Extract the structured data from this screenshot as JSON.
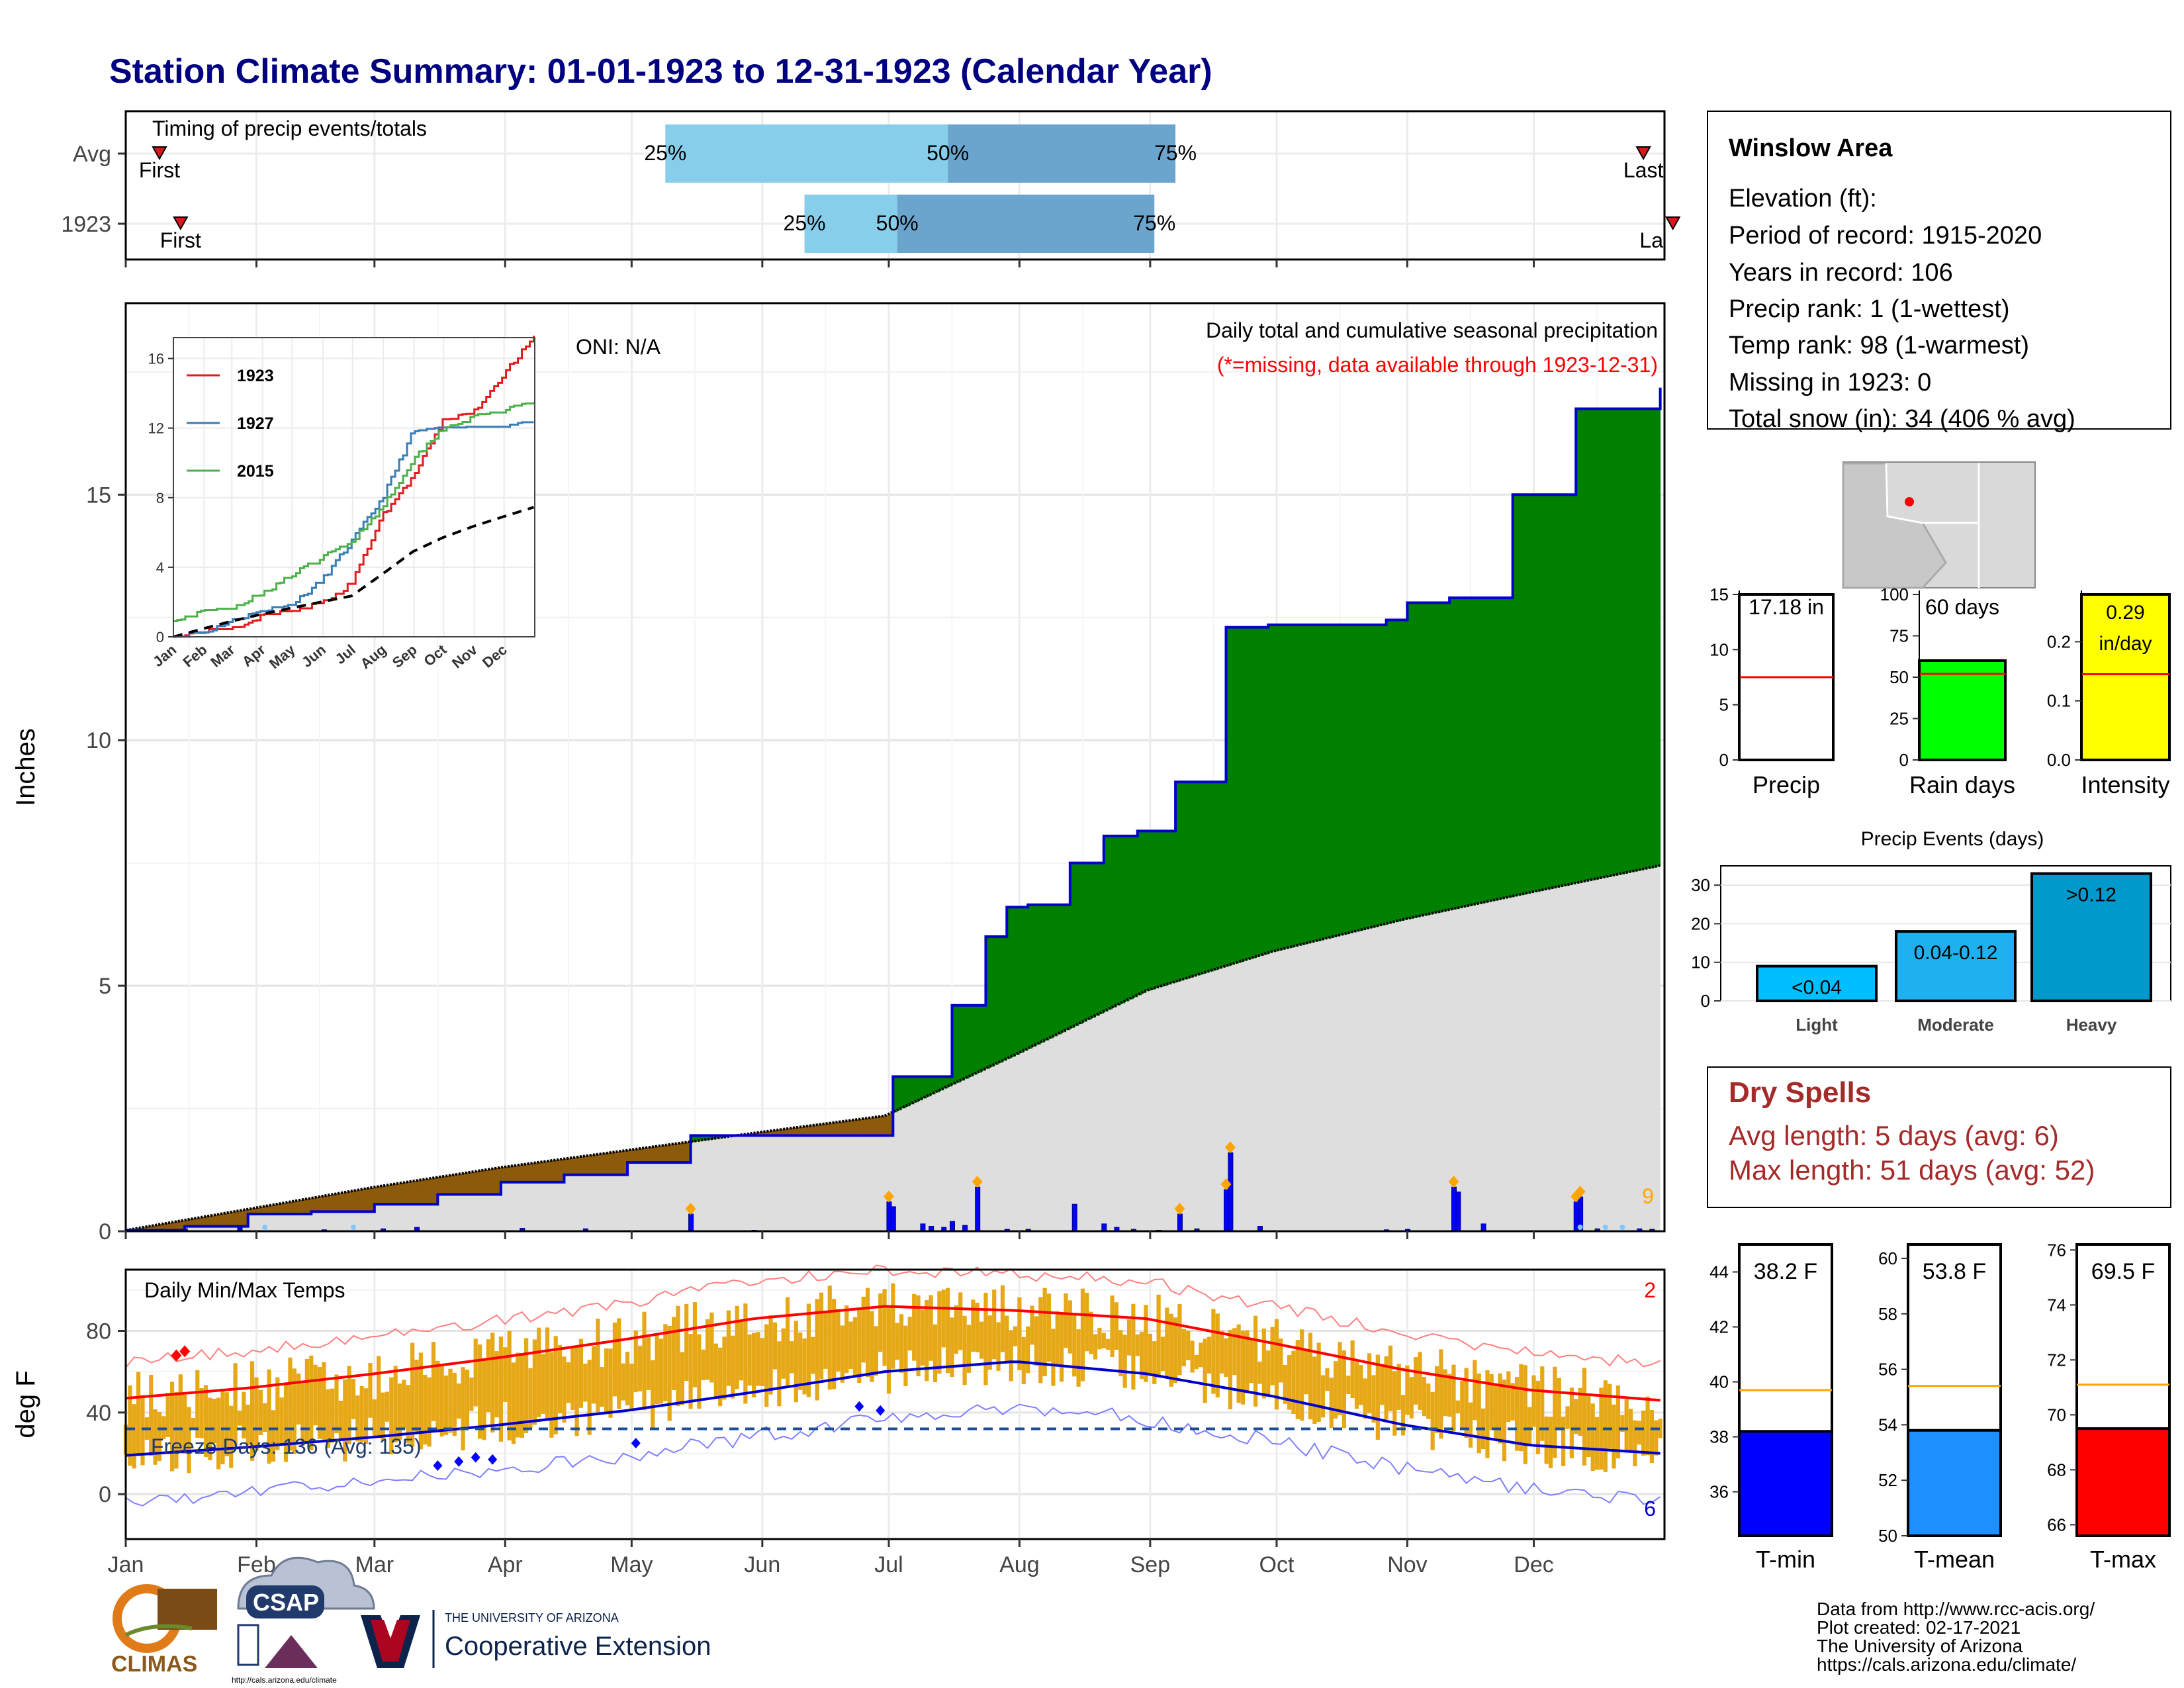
{
  "title": "Station Climate Summary: 01-01-1923 to 12-31-1923 (Calendar Year)",
  "months": [
    "Jan",
    "Feb",
    "Mar",
    "Apr",
    "May",
    "Jun",
    "Jul",
    "Aug",
    "Sep",
    "Oct",
    "Nov",
    "Dec"
  ],
  "timing": {
    "title": "Timing of precip events/totals",
    "rows": [
      "Avg",
      "1923"
    ],
    "pct_labels": [
      "25%",
      "50%",
      "75%"
    ],
    "first_label": "First",
    "last_label": "Last",
    "last_label_clipped": "La"
  },
  "main": {
    "ylabel": "Inches",
    "oni": "ONI: N/A",
    "heading": "Daily total and cumulative seasonal precipitation",
    "missing_note": "(*=missing, data available through 1923-12-31)",
    "extreme_count": "9",
    "yticks": [
      "0",
      "5",
      "10",
      "15"
    ]
  },
  "inset": {
    "legend": [
      "1923",
      "1927",
      "2015"
    ],
    "yticks": [
      "0",
      "4",
      "8",
      "12",
      "16"
    ],
    "xticks": [
      "Jan",
      "Feb",
      "Mar",
      "Apr",
      "May",
      "Jun",
      "Jul",
      "Aug",
      "Sep",
      "Oct",
      "Nov",
      "Dec"
    ]
  },
  "temps": {
    "ylabel": "deg F",
    "title": "Daily Min/Max Temps",
    "freeze": "Freeze Days: 136 (Avg: 135)",
    "hot_count": "2",
    "cold_count": "6",
    "yticks": [
      "0",
      "40",
      "80"
    ]
  },
  "info_box": {
    "station": "Winslow Area",
    "lines": [
      "Elevation (ft):",
      "Period of record: 1915-2020",
      "Years in record: 106",
      "Precip rank: 1 (1-wettest)",
      "Temp rank: 98 (1-warmest)",
      "Missing in 1923: 0",
      "Total snow (in): 34 (406 % avg)"
    ]
  },
  "mini_bars": [
    {
      "label": "Precip",
      "value_text": "17.18 in",
      "value": 17.18,
      "avg": 7.5,
      "ymax": 15,
      "yticks": [
        "0",
        "5",
        "10",
        "15"
      ],
      "color": "#ffffff"
    },
    {
      "label": "Rain days",
      "value_text": "60 days",
      "value": 60,
      "avg": 52,
      "ymax": 100,
      "yticks": [
        "0",
        "25",
        "50",
        "75",
        "100"
      ],
      "color": "#00ff00"
    },
    {
      "label": "Intensity",
      "value_text": "0.29 in/day",
      "value_line1": "0.29",
      "value_line2": "in/day",
      "value": 0.29,
      "avg": 0.145,
      "ymax": 0.28,
      "yticks": [
        "0.0",
        "0.1",
        "0.2"
      ],
      "color": "#ffff00"
    }
  ],
  "events": {
    "title": "Precip Events (days)",
    "categories": [
      "Light",
      "Moderate",
      "Heavy"
    ],
    "bin_labels": [
      "<0.04",
      "0.04-0.12",
      ">0.12"
    ],
    "values": [
      9,
      18,
      33
    ],
    "yticks": [
      "0",
      "10",
      "20",
      "30"
    ]
  },
  "dry_spells": {
    "title": "Dry Spells",
    "avg_line": "Avg length: 5 days (avg: 6)",
    "max_line": "Max length: 51 days (avg: 52)"
  },
  "temp_bars": [
    {
      "label": "T-min",
      "value_text": "38.2 F",
      "value": 38.2,
      "avg": 39.7,
      "ymin": 34.4,
      "ymax": 45.0,
      "yticks": [
        "36",
        "38",
        "40",
        "42",
        "44"
      ],
      "color": "#0000ff"
    },
    {
      "label": "T-mean",
      "value_text": "53.8 F",
      "value": 53.8,
      "avg": 55.4,
      "ymin": 50,
      "ymax": 60.5,
      "yticks": [
        "50",
        "52",
        "54",
        "56",
        "58",
        "60"
      ],
      "color": "#1e90ff"
    },
    {
      "label": "T-max",
      "value_text": "69.5 F",
      "value": 69.5,
      "avg": 71.1,
      "ymin": 65.6,
      "ymax": 76.2,
      "yticks": [
        "66",
        "68",
        "70",
        "72",
        "74",
        "76"
      ],
      "color": "#ff0000"
    }
  ],
  "footer": {
    "climas": "CLIMAS",
    "csap": "CSAP",
    "csap_url": "http://cals.arizona.edu/climate",
    "ua_small": "THE UNIVERSITY OF ARIZONA",
    "ua_big": "Cooperative Extension",
    "credits": [
      "Data from http://www.rcc-acis.org/",
      "Plot created: 02-17-2021",
      "The University of Arizona",
      "https://cals.arizona.edu/climate/"
    ]
  },
  "chart_data": [
    {
      "type": "area",
      "name": "cumulative precipitation",
      "ylabel": "Inches",
      "ylim": [
        0,
        18.5
      ],
      "x_unit": "day of year",
      "series": [
        {
          "name": "1923 cumulative",
          "x": [
            1,
            15,
            30,
            45,
            60,
            75,
            90,
            105,
            120,
            135,
            150,
            165,
            182,
            183,
            190,
            197,
            205,
            210,
            215,
            225,
            233,
            241,
            250,
            262,
            265,
            272,
            285,
            300,
            305,
            315,
            330,
            345,
            365
          ],
          "values": [
            0.02,
            0.1,
            0.35,
            0.4,
            0.55,
            0.75,
            1.0,
            1.15,
            1.4,
            1.95,
            1.95,
            1.95,
            1.95,
            3.15,
            3.15,
            4.6,
            6.0,
            6.6,
            6.65,
            7.5,
            8.05,
            8.15,
            9.15,
            12.3,
            12.3,
            12.35,
            12.35,
            12.45,
            12.8,
            12.9,
            15.0,
            16.75,
            17.18
          ]
        },
        {
          "name": "average cumulative",
          "x": [
            1,
            30,
            60,
            90,
            120,
            150,
            181,
            212,
            243,
            273,
            304,
            334,
            365
          ],
          "values": [
            0.02,
            0.45,
            0.9,
            1.3,
            1.65,
            2.0,
            2.35,
            3.6,
            4.9,
            5.7,
            6.35,
            6.9,
            7.45
          ]
        }
      ],
      "notes": [
        "Daily total and cumulative seasonal precipitation",
        "(*=missing, data available through 1923-12-31)"
      ]
    },
    {
      "type": "line",
      "name": "inset cumulative comparison",
      "ylim": [
        0,
        17
      ],
      "series": [
        {
          "name": "1923",
          "x": [
            1,
            30,
            60,
            90,
            120,
            150,
            160,
            181,
            212,
            243,
            273,
            304,
            334,
            365
          ],
          "values": [
            0,
            0.3,
            0.5,
            1.2,
            1.4,
            1.9,
            2.1,
            3.1,
            7.0,
            9.2,
            12.4,
            12.9,
            15.1,
            17.18
          ]
        },
        {
          "name": "1927",
          "x": [
            1,
            30,
            60,
            90,
            120,
            150,
            181,
            212,
            243,
            273,
            304,
            334,
            365
          ],
          "values": [
            0,
            0.2,
            0.9,
            1.5,
            1.8,
            3.2,
            5.5,
            8.0,
            11.8,
            11.9,
            12.0,
            12.0,
            12.3
          ]
        },
        {
          "name": "2015",
          "x": [
            1,
            30,
            60,
            90,
            120,
            150,
            181,
            212,
            243,
            273,
            304,
            334,
            365
          ],
          "values": [
            0.9,
            1.4,
            1.6,
            2.5,
            3.5,
            4.5,
            5.5,
            7.5,
            10.2,
            12.0,
            12.6,
            13.0,
            13.4
          ]
        },
        {
          "name": "average",
          "x": [
            1,
            30,
            60,
            90,
            120,
            150,
            181,
            212,
            243,
            273,
            304,
            334,
            365
          ],
          "values": [
            0,
            0.45,
            0.9,
            1.3,
            1.65,
            2.0,
            2.35,
            3.6,
            4.9,
            5.7,
            6.35,
            6.9,
            7.45
          ]
        }
      ]
    },
    {
      "type": "line",
      "name": "daily temperatures",
      "ylabel": "deg F",
      "ylim": [
        -20,
        110
      ],
      "series": [
        {
          "name": "avg max",
          "x": [
            1,
            30,
            60,
            90,
            120,
            150,
            181,
            212,
            243,
            273,
            304,
            334,
            365
          ],
          "values": [
            47,
            52,
            59,
            67,
            76,
            86,
            92,
            90,
            86,
            74,
            61,
            51,
            46
          ]
        },
        {
          "name": "avg min",
          "x": [
            1,
            30,
            60,
            90,
            120,
            150,
            181,
            212,
            243,
            273,
            304,
            334,
            365
          ],
          "values": [
            19,
            23,
            28,
            34,
            41,
            50,
            60,
            65,
            59,
            48,
            34,
            24,
            20
          ]
        }
      ],
      "freeze_threshold_f": 32
    }
  ]
}
